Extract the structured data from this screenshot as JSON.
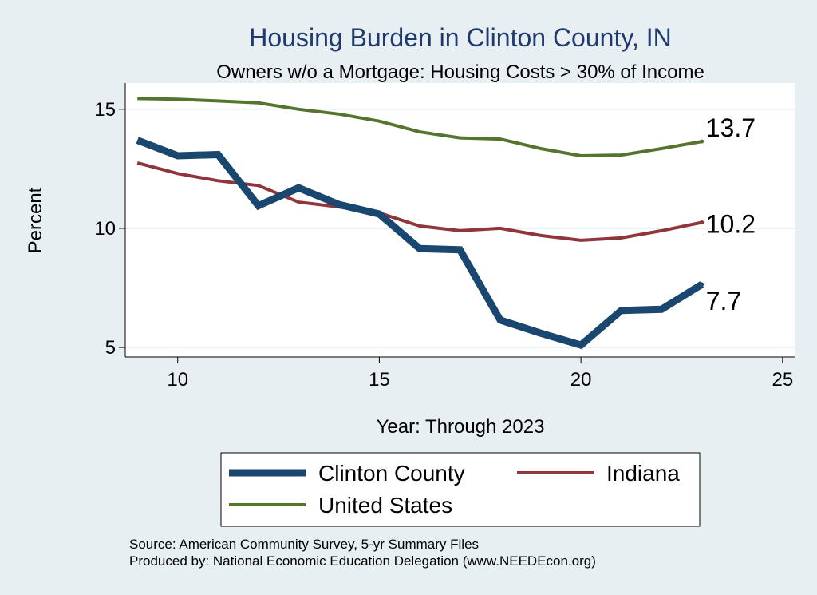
{
  "chart_data": {
    "type": "line",
    "title": "Housing Burden in Clinton County, IN",
    "subtitle": "Owners w/o a Mortgage: Housing Costs > 30% of Income",
    "xlabel": "Year: Through 2023",
    "ylabel": "Percent",
    "xlim": [
      8.7,
      25.3
    ],
    "ylim": [
      4.6,
      16.1
    ],
    "xticks": [
      10,
      15,
      20,
      25
    ],
    "yticks": [
      5,
      10,
      15
    ],
    "x": [
      9,
      10,
      11,
      12,
      13,
      14,
      15,
      16,
      17,
      18,
      19,
      20,
      21,
      22,
      23
    ],
    "series": [
      {
        "name": "Clinton County",
        "color": "#1a476f",
        "values": [
          13.7,
          13.05,
          13.1,
          10.95,
          11.7,
          11.0,
          10.6,
          9.15,
          9.1,
          6.15,
          5.6,
          5.1,
          6.55,
          6.6,
          7.65
        ],
        "end_label": "7.7"
      },
      {
        "name": "Indiana",
        "color": "#90353b",
        "values": [
          12.75,
          12.3,
          12.0,
          11.8,
          11.1,
          10.9,
          10.65,
          10.1,
          9.9,
          10.0,
          9.7,
          9.5,
          9.6,
          9.9,
          10.25
        ],
        "end_label": "10.2"
      },
      {
        "name": "United States",
        "color": "#55752f",
        "values": [
          15.45,
          15.42,
          15.35,
          15.27,
          15.0,
          14.8,
          14.5,
          14.05,
          13.8,
          13.75,
          13.35,
          13.05,
          13.08,
          13.35,
          13.65
        ],
        "end_label": "13.7"
      }
    ],
    "legend_position": "bottom",
    "source_lines": [
      "Source: American Community Survey, 5-yr Summary Files",
      "Produced by: National Economic Education Delegation (www.NEEDEcon.org)"
    ]
  }
}
